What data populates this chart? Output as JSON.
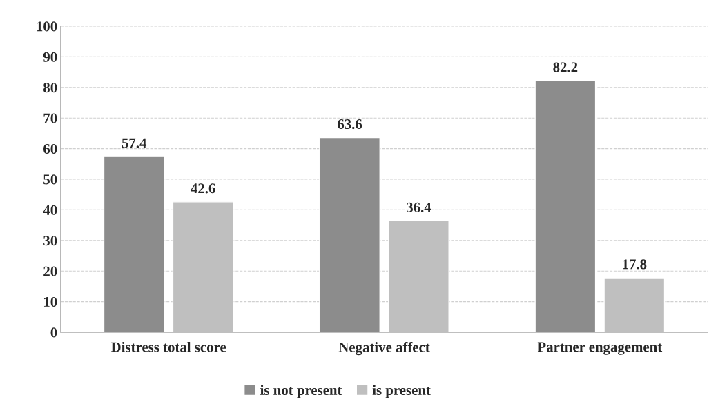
{
  "chart_data": {
    "type": "bar",
    "categories": [
      "Distress total score",
      "Negative affect",
      "Partner engagement"
    ],
    "series": [
      {
        "name": "is not present",
        "color": "#8c8c8c",
        "values": [
          57.4,
          63.6,
          82.2
        ]
      },
      {
        "name": "is present",
        "color": "#bfbfbf",
        "values": [
          42.6,
          36.4,
          17.8
        ]
      }
    ],
    "ylim": [
      0,
      100
    ],
    "yticks": [
      0,
      10,
      20,
      30,
      40,
      50,
      60,
      70,
      80,
      90,
      100
    ],
    "grid": "y",
    "legend": "bottom",
    "data_labels": true
  }
}
